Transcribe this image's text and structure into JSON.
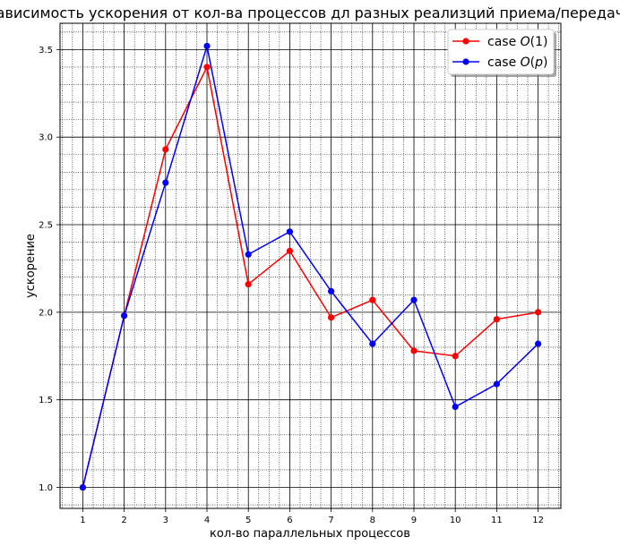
{
  "chart_data": {
    "type": "line",
    "title": "Зависимость ускорения от кол-ва процессов дл разных реализций приема/передачи",
    "xlabel": "кол-во параллельных процессов",
    "ylabel": "ускорение",
    "x": [
      1,
      2,
      3,
      4,
      5,
      6,
      7,
      8,
      9,
      10,
      11,
      12
    ],
    "xlim": [
      0.45,
      12.55
    ],
    "ylim": [
      0.88,
      3.65
    ],
    "yticks": [
      1.0,
      1.5,
      2.0,
      2.5,
      3.0,
      3.5
    ],
    "ytick_labels": [
      "1.0",
      "1.5",
      "2.0",
      "2.5",
      "3.0",
      "3.5"
    ],
    "xtick_labels": [
      "1",
      "2",
      "3",
      "4",
      "5",
      "6",
      "7",
      "8",
      "9",
      "10",
      "11",
      "12"
    ],
    "grid": true,
    "legend_position": "top-right",
    "series": [
      {
        "name_prefix": "case ",
        "name_math": "O(1)",
        "name_math_parts": [
          "O",
          "(1)"
        ],
        "color": "#ff0000",
        "values": [
          1.0,
          1.98,
          2.93,
          3.4,
          2.16,
          2.35,
          1.97,
          2.07,
          1.78,
          1.75,
          1.96,
          2.0
        ]
      },
      {
        "name_prefix": "case ",
        "name_math": "O(p)",
        "name_math_parts": [
          "O",
          "(",
          "p",
          ")"
        ],
        "color": "#0000ff",
        "values": [
          1.0,
          1.98,
          2.74,
          3.52,
          2.33,
          2.46,
          2.12,
          1.82,
          2.07,
          1.46,
          1.59,
          1.82
        ]
      }
    ]
  }
}
